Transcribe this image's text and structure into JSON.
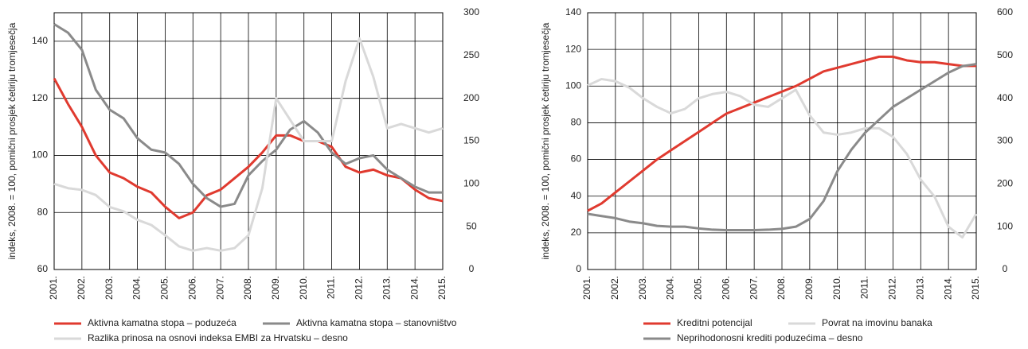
{
  "chart_data": [
    {
      "type": "line",
      "ylabel": "indeks, 2008. = 100, pomični prosjek četiriju tromjesečja",
      "xlim": [
        2001,
        2015
      ],
      "xticks": [
        {
          "value": 2001,
          "label": "2001."
        },
        {
          "value": 2002,
          "label": "2002."
        },
        {
          "value": 2003,
          "label": "2003."
        },
        {
          "value": 2004,
          "label": "2004."
        },
        {
          "value": 2005,
          "label": "2005."
        },
        {
          "value": 2006,
          "label": "2006."
        },
        {
          "value": 2007,
          "label": "2007."
        },
        {
          "value": 2008,
          "label": "2008."
        },
        {
          "value": 2009,
          "label": "2009."
        },
        {
          "value": 2010,
          "label": "2010."
        },
        {
          "value": 2011,
          "label": "2011."
        },
        {
          "value": 2012,
          "label": "2012."
        },
        {
          "value": 2013,
          "label": "2013."
        },
        {
          "value": 2014,
          "label": "2014."
        },
        {
          "value": 2015,
          "label": "2015."
        }
      ],
      "ylim": [
        60,
        150
      ],
      "yticks": [
        60,
        80,
        100,
        120,
        140
      ],
      "y2lim": [
        0,
        300
      ],
      "y2ticks": [
        0,
        50,
        100,
        150,
        200,
        250,
        300
      ],
      "grid": true,
      "x": [
        2001,
        2001.5,
        2002,
        2002.5,
        2003,
        2003.5,
        2004,
        2004.5,
        2005,
        2005.5,
        2006,
        2006.5,
        2007,
        2007.5,
        2008,
        2008.5,
        2009,
        2009.5,
        2010,
        2010.5,
        2011,
        2011.5,
        2012,
        2012.5,
        2013,
        2013.5,
        2014,
        2014.5,
        2015
      ],
      "series": [
        {
          "name": "Aktivna kamatna stopa – poduzeća",
          "color": "#e03a2f",
          "values": [
            127,
            118,
            110,
            100,
            94,
            92,
            89,
            87,
            82,
            78,
            80,
            86,
            88,
            92,
            96,
            101,
            107,
            107,
            105,
            105,
            103,
            96,
            94,
            95,
            93,
            92,
            88,
            85,
            84
          ]
        },
        {
          "name": "Aktivna kamatna stopa – stanovništvo",
          "color": "#8a8a8a",
          "values": [
            146,
            143,
            137,
            123,
            116,
            113,
            106,
            102,
            101,
            97,
            90,
            85,
            82,
            83,
            93,
            98,
            102,
            109,
            112,
            108,
            101,
            97,
            99,
            100,
            95,
            92,
            89,
            87,
            87
          ]
        },
        {
          "name": "Razlika prinosa na osnovi indeksa EMBI za Hrvatsku – desno",
          "color": "#d9d9d9",
          "axis": "y2",
          "values": [
            100,
            95,
            93,
            87,
            73,
            68,
            58,
            52,
            40,
            27,
            22,
            25,
            22,
            25,
            40,
            95,
            200,
            175,
            150,
            150,
            150,
            220,
            270,
            225,
            165,
            170,
            165,
            160,
            165
          ]
        }
      ]
    },
    {
      "type": "line",
      "ylabel": "indeks, 2008. = 100, pomični prosjek četiriju tromjesečja",
      "xlim": [
        2001,
        2015
      ],
      "xticks": [
        {
          "value": 2001,
          "label": "2001."
        },
        {
          "value": 2002,
          "label": "2002."
        },
        {
          "value": 2003,
          "label": "2003."
        },
        {
          "value": 2004,
          "label": "2004."
        },
        {
          "value": 2005,
          "label": "2005."
        },
        {
          "value": 2006,
          "label": "2006."
        },
        {
          "value": 2007,
          "label": "2007."
        },
        {
          "value": 2008,
          "label": "2008."
        },
        {
          "value": 2009,
          "label": "2009."
        },
        {
          "value": 2010,
          "label": "2010."
        },
        {
          "value": 2011,
          "label": "2011."
        },
        {
          "value": 2012,
          "label": "2012."
        },
        {
          "value": 2013,
          "label": "2013."
        },
        {
          "value": 2014,
          "label": "2014."
        },
        {
          "value": 2015,
          "label": "2015."
        }
      ],
      "ylim": [
        0,
        140
      ],
      "yticks": [
        0,
        20,
        40,
        60,
        80,
        100,
        120,
        140
      ],
      "y2lim": [
        0,
        600
      ],
      "y2ticks": [
        0,
        100,
        200,
        300,
        400,
        500,
        600
      ],
      "grid": true,
      "x": [
        2001,
        2001.5,
        2002,
        2002.5,
        2003,
        2003.5,
        2004,
        2004.5,
        2005,
        2005.5,
        2006,
        2006.5,
        2007,
        2007.5,
        2008,
        2008.5,
        2009,
        2009.5,
        2010,
        2010.5,
        2011,
        2011.5,
        2012,
        2012.5,
        2013,
        2013.5,
        2014,
        2014.5,
        2015
      ],
      "series": [
        {
          "name": "Kreditni potencijal",
          "color": "#e03a2f",
          "values": [
            32,
            36,
            42,
            48,
            54,
            60,
            65,
            70,
            75,
            80,
            85,
            88,
            91,
            94,
            97,
            100,
            104,
            108,
            110,
            112,
            114,
            116,
            116,
            114,
            113,
            113,
            112,
            111,
            111
          ]
        },
        {
          "name": "Povrat na imovinu banaka",
          "color": "#d9d9d9",
          "axis": "y2",
          "values": [
            430,
            445,
            440,
            425,
            400,
            380,
            365,
            375,
            400,
            410,
            415,
            405,
            385,
            380,
            400,
            420,
            360,
            320,
            315,
            320,
            330,
            330,
            310,
            270,
            210,
            170,
            100,
            75,
            130
          ]
        },
        {
          "name": "Neprihodonosni krediti poduzećima – desno",
          "color": "#8a8a8a",
          "axis": "y2",
          "values": [
            130,
            125,
            120,
            112,
            108,
            102,
            100,
            100,
            96,
            93,
            92,
            92,
            92,
            93,
            95,
            100,
            118,
            160,
            230,
            280,
            320,
            350,
            380,
            400,
            420,
            440,
            460,
            475,
            480
          ]
        }
      ]
    }
  ]
}
